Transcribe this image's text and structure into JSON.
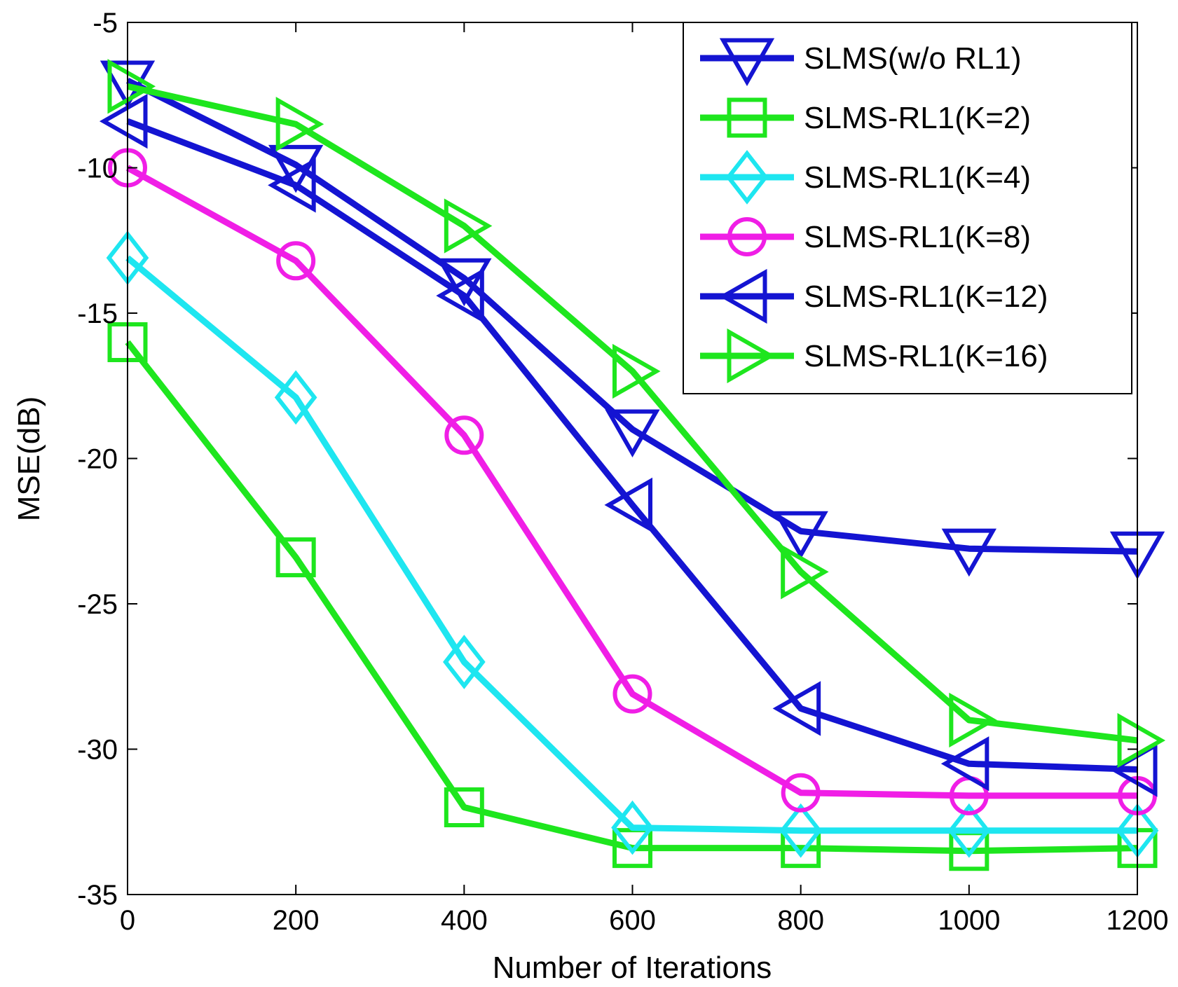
{
  "chart_data": {
    "type": "line",
    "title": "",
    "xlabel": "Number of Iterations",
    "ylabel": "MSE(dB)",
    "xlim": [
      0,
      1200
    ],
    "ylim": [
      -35,
      -5
    ],
    "xticks": [
      0,
      200,
      400,
      600,
      800,
      1000,
      1200
    ],
    "xtick_labels": [
      "0",
      "200",
      "400",
      "600",
      "800",
      "1000",
      "1200"
    ],
    "yticks": [
      -5,
      -10,
      -15,
      -20,
      -25,
      -30,
      -35
    ],
    "ytick_labels": [
      "-5",
      "-10",
      "-15",
      "-20",
      "-25",
      "-30",
      "-35"
    ],
    "grid": false,
    "legend_position": "top-right",
    "x": [
      0,
      200,
      400,
      600,
      800,
      1000,
      1200
    ],
    "series": [
      {
        "name": "SLMS(w/o RL1)",
        "marker": "triangle-down",
        "color": "#1414d2",
        "values": [
          -7.0,
          -9.9,
          -13.8,
          -19.0,
          -22.5,
          -23.1,
          -23.2
        ]
      },
      {
        "name": "SLMS-RL1(K=2)",
        "marker": "square",
        "color": "#1ee61e",
        "values": [
          -16.0,
          -23.4,
          -32.0,
          -33.4,
          -33.4,
          -33.5,
          -33.4
        ]
      },
      {
        "name": "SLMS-RL1(K=4)",
        "marker": "diamond",
        "color": "#1ee6f0",
        "values": [
          -13.1,
          -17.9,
          -27.0,
          -32.7,
          -32.8,
          -32.8,
          -32.8
        ]
      },
      {
        "name": "SLMS-RL1(K=8)",
        "marker": "circle",
        "color": "#f01ee6",
        "values": [
          -10.0,
          -13.2,
          -19.2,
          -28.1,
          -31.5,
          -31.6,
          -31.6
        ]
      },
      {
        "name": "SLMS-RL1(K=12)",
        "marker": "triangle-left",
        "color": "#1414d2",
        "values": [
          -8.4,
          -10.6,
          -14.4,
          -21.6,
          -28.6,
          -30.5,
          -30.7
        ]
      },
      {
        "name": "SLMS-RL1(K=16)",
        "marker": "triangle-right",
        "color": "#1ee61e",
        "values": [
          -7.2,
          -8.5,
          -12.0,
          -17.0,
          -23.9,
          -29.0,
          -29.7
        ]
      }
    ]
  }
}
